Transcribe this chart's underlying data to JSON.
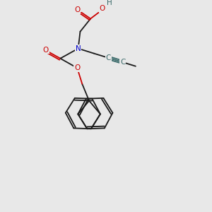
{
  "bg_color": "#e8e8e8",
  "atom_colors": {
    "O": "#cc0000",
    "N": "#0000cc",
    "C_triple": "#3a6a6a",
    "H": "#3a6a6a",
    "C": "#1a1a1a"
  },
  "lw": 1.3,
  "fs": 7.5
}
